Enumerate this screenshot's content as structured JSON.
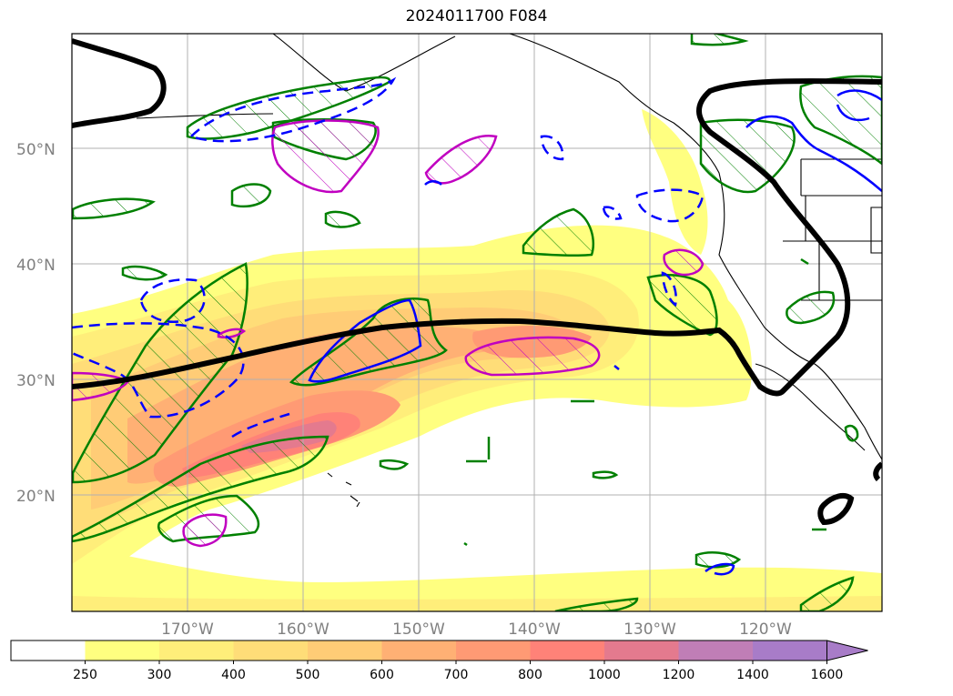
{
  "title": "2024011700 F084",
  "lat_labels": [
    "50°N",
    "40°N",
    "30°N",
    "20°N"
  ],
  "lon_labels": [
    "170°W",
    "160°W",
    "150°W",
    "140°W",
    "130°W",
    "120°W"
  ],
  "colorbar": {
    "ticks": [
      "250",
      "300",
      "400",
      "500",
      "600",
      "700",
      "800",
      "1000",
      "1200",
      "1400",
      "1600"
    ],
    "colors": [
      "#ffffff",
      "#ffff80",
      "#ffee7a",
      "#ffdd78",
      "#ffcc76",
      "#ffb074",
      "#ff9a74",
      "#ff8278",
      "#e47a8e",
      "#c07eb6",
      "#a87cc8"
    ],
    "extend": "max"
  },
  "contour_colors": {
    "jet_line": "#000000",
    "green_hatch": "#008000",
    "blue_dashed": "#0000ff",
    "magenta": "#c000c0"
  }
}
